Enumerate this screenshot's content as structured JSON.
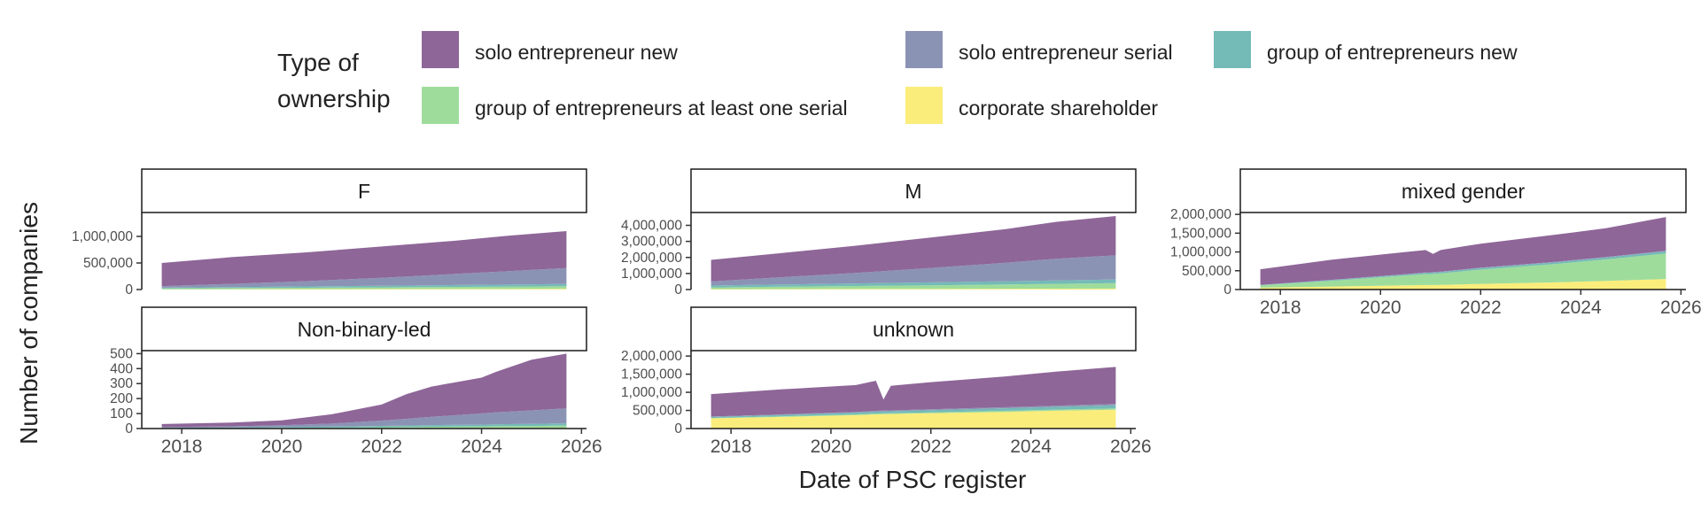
{
  "chart_data": {
    "type": "area",
    "stacked": true,
    "facet_by": "gender",
    "xlabel": "Date of PSC register",
    "ylabel": "Number of companies",
    "x_ticks": [
      "2018",
      "2020",
      "2022",
      "2024",
      "2026"
    ],
    "x_range": [
      2017.2,
      2026.1
    ],
    "legend": {
      "title_lines": [
        "Type of",
        "ownership"
      ],
      "position": "top",
      "entries": [
        {
          "key": "solo_new",
          "label": "solo entrepreneur new",
          "color": "#8e6698"
        },
        {
          "key": "solo_serial",
          "label": "solo entrepreneur serial",
          "color": "#8b93b5"
        },
        {
          "key": "group_new",
          "label": "group of entrepreneurs new",
          "color": "#74bab7"
        },
        {
          "key": "group_serial",
          "label": "group of entrepreneurs at least one serial",
          "color": "#9edc9c"
        },
        {
          "key": "corporate",
          "label": "corporate shareholder",
          "color": "#fbed7b"
        }
      ]
    },
    "stack_order": [
      "corporate",
      "group_serial",
      "group_new",
      "solo_serial",
      "solo_new"
    ],
    "panels": [
      {
        "strip": "F",
        "y_range": [
          0,
          1450000
        ],
        "y_ticks": [
          {
            "value": 0,
            "label": "0"
          },
          {
            "value": 500000,
            "label": "500,000"
          },
          {
            "value": 1000000,
            "label": "1,000,000"
          }
        ],
        "x": [
          2017.6,
          2019,
          2020.5,
          2022,
          2023.5,
          2024.5,
          2025.7
        ],
        "series": {
          "corporate": [
            5000,
            6000,
            8000,
            10000,
            12000,
            13000,
            15000
          ],
          "group_serial": [
            15000,
            20000,
            25000,
            32000,
            38000,
            42000,
            48000
          ],
          "group_new": [
            15000,
            20000,
            25000,
            30000,
            35000,
            38000,
            42000
          ],
          "solo_serial": [
            30000,
            60000,
            100000,
            150000,
            210000,
            250000,
            300000
          ],
          "solo_new": [
            435000,
            504000,
            542000,
            588000,
            625000,
            667000,
            695000
          ]
        }
      },
      {
        "strip": "M",
        "y_range": [
          0,
          4800000
        ],
        "y_ticks": [
          {
            "value": 0,
            "label": "0"
          },
          {
            "value": 1000000,
            "label": "1,000,000"
          },
          {
            "value": 2000000,
            "label": "2,000,000"
          },
          {
            "value": 3000000,
            "label": "3,000,000"
          },
          {
            "value": 4000000,
            "label": "4,000,000"
          }
        ],
        "x": [
          2017.6,
          2019,
          2020.5,
          2022,
          2023.5,
          2024.5,
          2025.7
        ],
        "series": {
          "corporate": [
            30000,
            35000,
            40000,
            45000,
            50000,
            55000,
            60000
          ],
          "group_serial": [
            100000,
            140000,
            180000,
            220000,
            270000,
            300000,
            340000
          ],
          "group_new": [
            120000,
            140000,
            160000,
            180000,
            200000,
            210000,
            230000
          ],
          "solo_serial": [
            250000,
            450000,
            650000,
            900000,
            1150000,
            1350000,
            1500000
          ],
          "solo_new": [
            1350000,
            1500000,
            1700000,
            1900000,
            2100000,
            2300000,
            2450000
          ]
        }
      },
      {
        "strip": "mixed gender",
        "y_range": [
          0,
          2050000
        ],
        "y_ticks": [
          {
            "value": 0,
            "label": "0"
          },
          {
            "value": 500000,
            "label": "500,000"
          },
          {
            "value": 1000000,
            "label": "1,000,000"
          },
          {
            "value": 1500000,
            "label": "1,500,000"
          },
          {
            "value": 2000000,
            "label": "2,000,000"
          }
        ],
        "x": [
          2017.6,
          2019,
          2020.5,
          2020.9,
          2021.05,
          2021.2,
          2022,
          2023.5,
          2024.5,
          2025.7
        ],
        "series": {
          "corporate": [
            50000,
            80000,
            110000,
            120000,
            120000,
            125000,
            150000,
            190000,
            230000,
            280000
          ],
          "group_serial": [
            60000,
            150000,
            260000,
            290000,
            295000,
            305000,
            380000,
            490000,
            570000,
            680000
          ],
          "group_new": [
            10000,
            20000,
            30000,
            35000,
            35000,
            36000,
            40000,
            45000,
            50000,
            55000
          ],
          "solo_serial": [
            5000,
            8000,
            10000,
            11000,
            11000,
            11000,
            13000,
            15000,
            17000,
            20000
          ],
          "solo_new": [
            415000,
            532000,
            590000,
            594000,
            489000,
            573000,
            637000,
            720000,
            763000,
            895000
          ]
        }
      },
      {
        "strip": "Non-binary-led",
        "y_range": [
          0,
          520
        ],
        "y_ticks": [
          {
            "value": 0,
            "label": "0"
          },
          {
            "value": 100,
            "label": "100"
          },
          {
            "value": 200,
            "label": "200"
          },
          {
            "value": 300,
            "label": "300"
          },
          {
            "value": 400,
            "label": "400"
          },
          {
            "value": 500,
            "label": "500"
          }
        ],
        "x": [
          2017.6,
          2019,
          2020,
          2021,
          2022,
          2022.5,
          2023,
          2024,
          2024.3,
          2025,
          2025.7
        ],
        "series": {
          "corporate": [
            0,
            0,
            1,
            1,
            2,
            2,
            3,
            3,
            4,
            4,
            5
          ],
          "group_serial": [
            2,
            3,
            4,
            5,
            7,
            8,
            9,
            11,
            12,
            13,
            15
          ],
          "group_new": [
            3,
            4,
            5,
            7,
            9,
            10,
            11,
            12,
            13,
            14,
            15
          ],
          "solo_serial": [
            5,
            8,
            12,
            20,
            35,
            45,
            55,
            75,
            80,
            90,
            100
          ],
          "solo_new": [
            20,
            25,
            33,
            62,
            107,
            165,
            202,
            239,
            271,
            339,
            365
          ]
        }
      },
      {
        "strip": "unknown",
        "y_range": [
          0,
          2150000
        ],
        "y_ticks": [
          {
            "value": 0,
            "label": "0"
          },
          {
            "value": 500000,
            "label": "500,000"
          },
          {
            "value": 1000000,
            "label": "1,000,000"
          },
          {
            "value": 1500000,
            "label": "1,500,000"
          },
          {
            "value": 2000000,
            "label": "2,000,000"
          }
        ],
        "x": [
          2017.6,
          2019,
          2020.5,
          2020.9,
          2021.05,
          2021.2,
          2022,
          2023.5,
          2024.5,
          2025.7
        ],
        "series": {
          "corporate": [
            280000,
            320000,
            370000,
            390000,
            395000,
            400000,
            420000,
            460000,
            490000,
            520000
          ],
          "group_serial": [
            10000,
            15000,
            20000,
            22000,
            22000,
            23000,
            25000,
            30000,
            33000,
            38000
          ],
          "group_new": [
            30000,
            40000,
            50000,
            55000,
            55000,
            56000,
            60000,
            70000,
            75000,
            85000
          ],
          "solo_serial": [
            10000,
            15000,
            20000,
            22000,
            22000,
            23000,
            25000,
            30000,
            33000,
            38000
          ],
          "solo_new": [
            620000,
            690000,
            740000,
            831000,
            306000,
            678000,
            750000,
            850000,
            939000,
            1019000
          ]
        }
      }
    ]
  }
}
